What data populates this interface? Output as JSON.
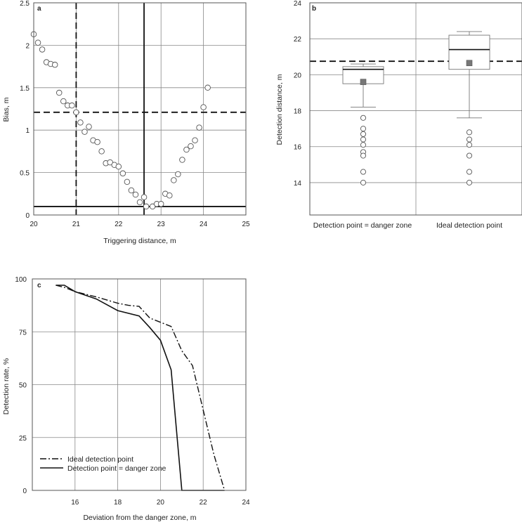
{
  "chart_data": [
    {
      "panel": "a",
      "type": "scatter",
      "xlabel": "Triggering distance, m",
      "ylabel": "Bias, m",
      "xlim": [
        20,
        25
      ],
      "ylim": [
        0,
        2.5
      ],
      "xticks": [
        "20",
        "21",
        "22",
        "23",
        "24",
        "25"
      ],
      "yticks": [
        "0",
        "0.5",
        "1",
        "1.5",
        "2",
        "2.5"
      ],
      "grid": true,
      "points": [
        {
          "x": 20.0,
          "y": 2.13
        },
        {
          "x": 20.1,
          "y": 2.03
        },
        {
          "x": 20.2,
          "y": 1.95
        },
        {
          "x": 20.3,
          "y": 1.8
        },
        {
          "x": 20.4,
          "y": 1.78
        },
        {
          "x": 20.5,
          "y": 1.77
        },
        {
          "x": 20.6,
          "y": 1.44
        },
        {
          "x": 20.7,
          "y": 1.34
        },
        {
          "x": 20.8,
          "y": 1.29
        },
        {
          "x": 20.9,
          "y": 1.29
        },
        {
          "x": 21.0,
          "y": 1.21
        },
        {
          "x": 21.1,
          "y": 1.09
        },
        {
          "x": 21.2,
          "y": 0.98
        },
        {
          "x": 21.3,
          "y": 1.04
        },
        {
          "x": 21.4,
          "y": 0.88
        },
        {
          "x": 21.5,
          "y": 0.86
        },
        {
          "x": 21.6,
          "y": 0.75
        },
        {
          "x": 21.7,
          "y": 0.61
        },
        {
          "x": 21.8,
          "y": 0.62
        },
        {
          "x": 21.9,
          "y": 0.59
        },
        {
          "x": 22.0,
          "y": 0.57
        },
        {
          "x": 22.1,
          "y": 0.49
        },
        {
          "x": 22.2,
          "y": 0.39
        },
        {
          "x": 22.3,
          "y": 0.29
        },
        {
          "x": 22.4,
          "y": 0.24
        },
        {
          "x": 22.5,
          "y": 0.15
        },
        {
          "x": 22.6,
          "y": 0.21
        },
        {
          "x": 22.65,
          "y": 0.1
        },
        {
          "x": 22.8,
          "y": 0.1
        },
        {
          "x": 22.9,
          "y": 0.13
        },
        {
          "x": 23.0,
          "y": 0.13
        },
        {
          "x": 23.1,
          "y": 0.25
        },
        {
          "x": 23.2,
          "y": 0.23
        },
        {
          "x": 23.3,
          "y": 0.41
        },
        {
          "x": 23.4,
          "y": 0.48
        },
        {
          "x": 23.5,
          "y": 0.65
        },
        {
          "x": 23.6,
          "y": 0.77
        },
        {
          "x": 23.7,
          "y": 0.81
        },
        {
          "x": 23.8,
          "y": 0.88
        },
        {
          "x": 23.9,
          "y": 1.03
        },
        {
          "x": 24.0,
          "y": 1.27
        },
        {
          "x": 24.1,
          "y": 1.5
        }
      ],
      "reference_lines": [
        {
          "orientation": "vertical",
          "value": 21.0,
          "style": "dashed"
        },
        {
          "orientation": "horizontal",
          "value": 1.21,
          "style": "dashed"
        },
        {
          "orientation": "vertical",
          "value": 22.6,
          "style": "solid"
        },
        {
          "orientation": "horizontal",
          "value": 0.1,
          "style": "solid"
        }
      ]
    },
    {
      "panel": "b",
      "type": "box",
      "ylabel": "Detection distance, m",
      "ylim": [
        12.2,
        24
      ],
      "yticks": [
        "14",
        "16",
        "18",
        "20",
        "22",
        "24"
      ],
      "categories": [
        "Detection point = danger zone",
        "Ideal detection point"
      ],
      "boxes": [
        {
          "whisker_low": 18.2,
          "q1": 19.5,
          "median": 20.3,
          "q3": 20.45,
          "whisker_high": 20.6,
          "mean": 19.6,
          "outliers": [
            17.6,
            17.0,
            16.7,
            16.4,
            16.1,
            15.7,
            15.5,
            14.6,
            14.0
          ]
        },
        {
          "whisker_low": 17.6,
          "q1": 20.3,
          "median": 21.4,
          "q3": 22.2,
          "whisker_high": 22.4,
          "mean": 20.65,
          "outliers": [
            16.8,
            16.4,
            16.1,
            15.5,
            14.6,
            14.0
          ]
        }
      ],
      "reference_lines": [
        {
          "orientation": "horizontal",
          "value": 20.75,
          "style": "dashed"
        }
      ],
      "grid": true
    },
    {
      "panel": "c",
      "type": "line",
      "xlabel": "Deviation from the danger zone, m",
      "ylabel": "Detection rate, %",
      "xlim": [
        14,
        24
      ],
      "ylim": [
        0,
        100
      ],
      "xticks": [
        "16",
        "18",
        "20",
        "22",
        "24"
      ],
      "yticks": [
        "0",
        "25",
        "50",
        "75",
        "100"
      ],
      "grid": true,
      "legend": "bottom-left",
      "series": [
        {
          "name": "Ideal detection point",
          "style": "dashdot",
          "x": [
            15.1,
            15.5,
            16.0,
            17.0,
            18.0,
            18.5,
            19.0,
            19.5,
            20.0,
            20.5,
            21.0,
            21.5,
            22.0,
            22.5,
            23.0
          ],
          "y": [
            97,
            96,
            94,
            91.5,
            88.5,
            87.5,
            87,
            81.5,
            79.5,
            77.5,
            66,
            59,
            38,
            17,
            0
          ]
        },
        {
          "name": "Detection point = danger zone",
          "style": "solid",
          "x": [
            15.1,
            15.5,
            16.0,
            17.0,
            18.0,
            19.0,
            19.5,
            20.0,
            20.5,
            21.0,
            21.5,
            23.0
          ],
          "y": [
            97,
            97,
            94,
            90.5,
            85,
            82.5,
            77,
            71,
            57,
            0,
            0,
            0
          ]
        }
      ]
    }
  ],
  "labels": {
    "a": "a",
    "b": "b",
    "c": "c"
  }
}
